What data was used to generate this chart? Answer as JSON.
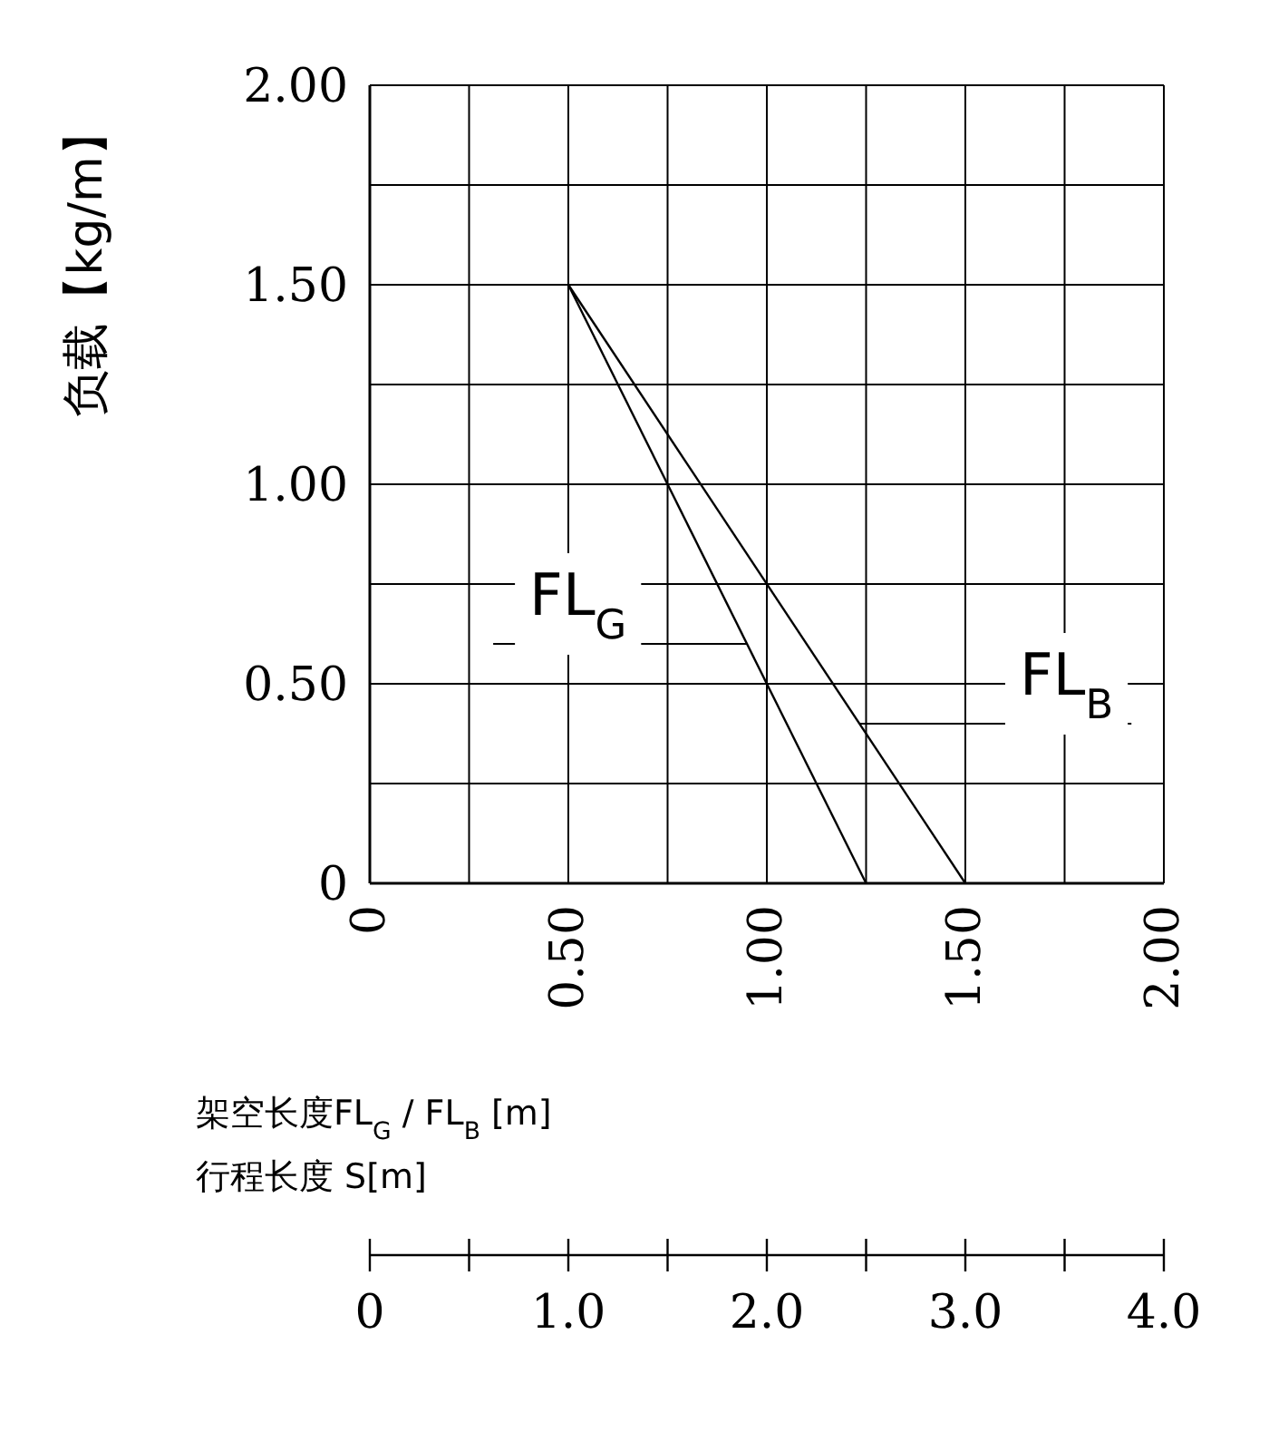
{
  "chart_data": {
    "type": "line",
    "ylabel": "负载【kg/m】",
    "xlabel": "架空长度FL$_{G}$ / FL$_{B}$ [m]",
    "x2label": "行程长度 S[m]",
    "xlim": [
      0,
      2
    ],
    "ylim": [
      0,
      2
    ],
    "xticks": [
      0,
      {
        "value": 0.25,
        "label": null
      },
      {
        "value": 0.5,
        "label": "0.50"
      },
      {
        "value": 0.75,
        "label": null
      },
      {
        "value": 1,
        "label": "1.00"
      },
      {
        "value": 1.25,
        "label": null
      },
      {
        "value": 1.5,
        "label": "1.50"
      },
      {
        "value": 1.75,
        "label": null
      },
      {
        "value": 2,
        "label": "2.00"
      }
    ],
    "yticks": [
      0,
      {
        "value": 0.25,
        "label": null
      },
      {
        "value": 0.5,
        "label": "0.50"
      },
      {
        "value": 0.75,
        "label": null
      },
      {
        "value": 1,
        "label": "1.00"
      },
      {
        "value": 1.25,
        "label": null
      },
      {
        "value": 1.5,
        "label": "1.50"
      },
      {
        "value": 1.75,
        "label": null
      },
      {
        "value": 2,
        "label": "2.00"
      }
    ],
    "x2lim": [
      0,
      4
    ],
    "x2ticks": [
      0,
      {
        "value": 0.5,
        "label": null
      },
      {
        "value": 1,
        "label": "1.0"
      },
      {
        "value": 1.5,
        "label": null
      },
      {
        "value": 2,
        "label": "2.0"
      },
      {
        "value": 2.5,
        "label": null
      },
      {
        "value": 3,
        "label": "3.0"
      },
      {
        "value": 3.5,
        "label": null
      },
      {
        "value": 4,
        "label": "4.0"
      }
    ],
    "grid": true,
    "series": [
      {
        "name": "FL$_{G}$",
        "color": "#000000",
        "x": [
          0.5,
          1.25
        ],
        "values": [
          1.5,
          0
        ]
      },
      {
        "name": "FL$_{B}$",
        "color": "#000000",
        "x": [
          0.5,
          1.5
        ],
        "values": [
          1.5,
          0
        ]
      }
    ]
  }
}
